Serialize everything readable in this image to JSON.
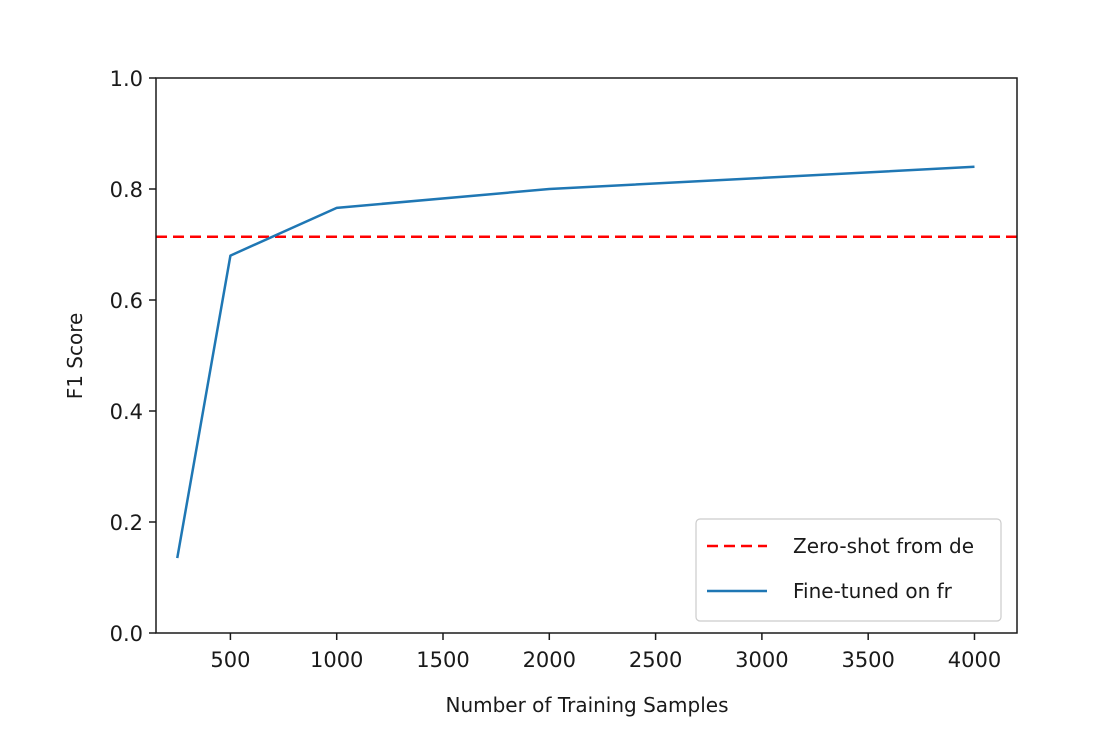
{
  "chart_data": {
    "type": "line",
    "title": "",
    "xlabel": "Number of Training Samples",
    "ylabel": "F1 Score",
    "xlim": [
      150,
      4200
    ],
    "ylim": [
      0.0,
      1.0
    ],
    "xticks": [
      500,
      1000,
      1500,
      2000,
      2500,
      3000,
      3500,
      4000
    ],
    "xtick_labels": [
      "500",
      "1000",
      "1500",
      "2000",
      "2500",
      "3000",
      "3500",
      "4000"
    ],
    "yticks": [
      0.0,
      0.2,
      0.4,
      0.6,
      0.8,
      1.0
    ],
    "ytick_labels": [
      "0.0",
      "0.2",
      "0.4",
      "0.6",
      "0.8",
      "1.0"
    ],
    "grid": false,
    "legend_position": "lower-right",
    "series": [
      {
        "name": "Fine-tuned on fr",
        "x": [
          250,
          500,
          1000,
          2000,
          4000
        ],
        "y": [
          0.135,
          0.68,
          0.766,
          0.8,
          0.84
        ],
        "color": "#1f77b4",
        "style": "solid"
      }
    ],
    "reference_lines": [
      {
        "name": "Zero-shot from de",
        "y": 0.714,
        "color": "#ff0000",
        "style": "dashed"
      }
    ]
  }
}
